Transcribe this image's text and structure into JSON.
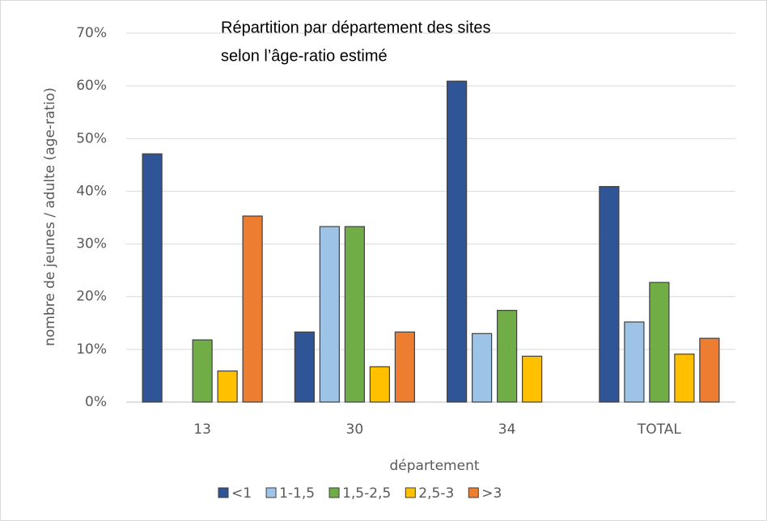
{
  "chart_data": {
    "type": "bar",
    "title": [
      "Répartition par département des sites",
      "selon l’âge-ratio estimé"
    ],
    "x_label": "département",
    "y_label": "nombre de jeunes / adulte (age-ratio)",
    "categories": [
      "13",
      "30",
      "34",
      "TOTAL"
    ],
    "series": [
      {
        "name": "<1",
        "color": "#2f5597",
        "values": [
          47.1,
          13.3,
          60.9,
          40.9
        ]
      },
      {
        "name": "1-1,5",
        "color": "#9dc3e6",
        "values": [
          0,
          33.3,
          13.0,
          15.2
        ]
      },
      {
        "name": "1,5-2,5",
        "color": "#70ad47",
        "values": [
          11.8,
          33.3,
          17.4,
          22.7
        ]
      },
      {
        "name": "2,5-3",
        "color": "#ffc000",
        "values": [
          5.9,
          6.7,
          8.7,
          9.1
        ]
      },
      {
        "name": ">3",
        "color": "#ed7d31",
        "values": [
          35.3,
          13.3,
          0,
          12.1
        ]
      }
    ],
    "ylim": [
      0,
      70
    ],
    "yticks": [
      {
        "value": 0,
        "label": "0%"
      },
      {
        "value": 10,
        "label": "10%"
      },
      {
        "value": 20,
        "label": "20%"
      },
      {
        "value": 30,
        "label": "30%"
      },
      {
        "value": 40,
        "label": "40%"
      },
      {
        "value": 50,
        "label": "50%"
      },
      {
        "value": 60,
        "label": "60%"
      },
      {
        "value": 70,
        "label": "70%"
      }
    ],
    "grid": true,
    "legend": "bottom"
  }
}
